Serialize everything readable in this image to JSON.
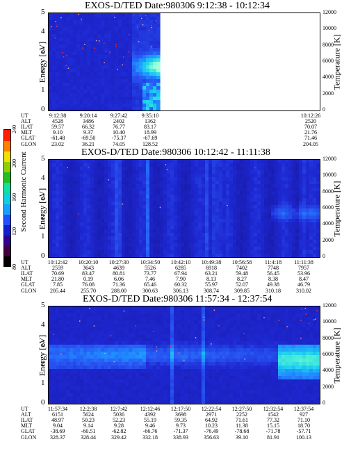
{
  "colorbar": {
    "label": "Second Harmonic Current",
    "ticks": [
      "80",
      "120",
      "160",
      "200",
      "240"
    ],
    "colors": [
      "#000000",
      "#400040",
      "#300090",
      "#1020d0",
      "#2050ff",
      "#1aa0ff",
      "#10d0e0",
      "#10e0a0",
      "#20c020",
      "#90d000",
      "#f0e000",
      "#ff8000",
      "#ff2000"
    ]
  },
  "panels": [
    {
      "title": "EXOS-D/TED   Date:980306  9:12:38 - 10:12:34",
      "ylabel": "Energy [eV]",
      "y2label": "Temperature [K]",
      "yticks": [
        "0",
        "1",
        "2",
        "3",
        "4",
        "5"
      ],
      "y2ticks": [
        "0",
        "2000",
        "4000",
        "6000",
        "8000",
        "10000",
        "12000"
      ],
      "eph_labels": [
        "UT",
        "ALT",
        "ILAT",
        "MLT",
        "GLAT",
        "GLON"
      ],
      "eph_columns": [
        {
          "vals": [
            "9:12:38",
            "4528",
            "59.57",
            "9.10",
            "-61.48",
            "23.02"
          ]
        },
        {
          "vals": [
            "9:20:14",
            "3486",
            "66.32",
            "9.37",
            "-69.50",
            "36.21"
          ]
        },
        {
          "vals": [
            "9:27:42",
            "2402",
            "76.77",
            "10.40",
            "-75.37",
            "74.05"
          ]
        },
        {
          "vals": [
            "9:35:10",
            "1362",
            "83.17",
            "18.99",
            "-67.69",
            "128.52"
          ]
        },
        {
          "vals": [
            "10:12:26",
            "2520",
            "70.07",
            "21.76",
            "71.46",
            "204.05"
          ]
        }
      ]
    },
    {
      "title": "EXOS-D/TED   Date:980306  10:12:42 - 11:11:38",
      "ylabel": "Energy [eV]",
      "y2label": "Temperature [K]",
      "yticks": [
        "0",
        "1",
        "2",
        "3",
        "4",
        "5"
      ],
      "y2ticks": [
        "0",
        "2000",
        "4000",
        "6000",
        "8000",
        "10000",
        "12000"
      ],
      "eph_labels": [
        "UT",
        "ALT",
        "ILAT",
        "MLT",
        "GLAT",
        "GLON"
      ],
      "eph_columns": [
        {
          "vals": [
            "10:12:42",
            "2559",
            "70.69",
            "21.80",
            "7.85",
            "205.44"
          ]
        },
        {
          "vals": [
            "10:20:10",
            "3643",
            "83.47",
            "0.19",
            "76.08",
            "255.70"
          ]
        },
        {
          "vals": [
            "10:27:30",
            "4639",
            "80.81",
            "6.06",
            "71.36",
            "288.00"
          ]
        },
        {
          "vals": [
            "10:34:50",
            "5526",
            "73.77",
            "7.46",
            "65.46",
            "300.63"
          ]
        },
        {
          "vals": [
            "10:42:10",
            "6285",
            "67.94",
            "7.90",
            "60.32",
            "306.13"
          ]
        },
        {
          "vals": [
            "10:49:38",
            "6918",
            "63.21",
            "8.13",
            "55.97",
            "308.74"
          ]
        },
        {
          "vals": [
            "10:56:58",
            "7402",
            "59.48",
            "8.27",
            "52.07",
            "309.85"
          ]
        },
        {
          "vals": [
            "11:4:18",
            "7748",
            "56.45",
            "8.38",
            "49.38",
            "310.18"
          ]
        },
        {
          "vals": [
            "11:11:38",
            "7957",
            "53.96",
            "8.47",
            "46.79",
            "310.02"
          ]
        }
      ]
    },
    {
      "title": "EXOS-D/TED   Date:980306  11:57:34 - 12:37:54",
      "ylabel": "Energy [eV]",
      "y2label": "Temperature [K]",
      "yticks": [
        "0",
        "1",
        "2",
        "3",
        "4",
        "5"
      ],
      "y2ticks": [
        "0",
        "2000",
        "4000",
        "6000",
        "8000",
        "10000",
        "12000"
      ],
      "eph_labels": [
        "UT",
        "ALT",
        "ILAT",
        "MLT",
        "GLAT",
        "GLON"
      ],
      "eph_columns": [
        {
          "vals": [
            "11:57:34",
            "6151",
            "48.97",
            "9.04",
            "-38.69",
            "328.37"
          ]
        },
        {
          "vals": [
            "12:2:38",
            "5624",
            "50.23",
            "9.14",
            "-60.51",
            "328.44"
          ]
        },
        {
          "vals": [
            "12:7:42",
            "5036",
            "52.23",
            "9.28",
            "-62.82",
            "329.42"
          ]
        },
        {
          "vals": [
            "12:12:46",
            "4392",
            "55.19",
            "9.46",
            "-66.76",
            "332.18"
          ]
        },
        {
          "vals": [
            "12:17:50",
            "3698",
            "59.35",
            "9.73",
            "-71.37",
            "338.93"
          ]
        },
        {
          "vals": [
            "12:22:54",
            "2971",
            "64.92",
            "10.23",
            "-76.49",
            "356.63"
          ]
        },
        {
          "vals": [
            "12:27:50",
            "2252",
            "71.61",
            "11.38",
            "-78.68",
            "39.10"
          ]
        },
        {
          "vals": [
            "12:32:54",
            "1542",
            "77.32",
            "15.15",
            "-71.78",
            "81.91"
          ]
        },
        {
          "vals": [
            "12:37:54",
            "927",
            "71.10",
            "18.70",
            "-57.71",
            "100.13"
          ]
        }
      ]
    }
  ],
  "chart_data": [
    {
      "type": "heatmap",
      "title": "EXOS-D/TED   Date:980306  9:12:38 - 10:12:34",
      "xlabel": "UT",
      "ylabel": "Energy [eV]",
      "y2label": "Temperature [K]",
      "ylim": [
        0,
        5
      ],
      "y2lim": [
        0,
        12000
      ],
      "x_ticks": [
        "9:12:38",
        "9:20:14",
        "9:27:42",
        "9:35:10",
        "10:12:26"
      ],
      "colorbar_label": "Second Harmonic Current",
      "colorbar_ticks": [
        80,
        120,
        160,
        200,
        240
      ],
      "data_coverage": "data only from 9:12:38 to about 9:39; no data afterwards"
    },
    {
      "type": "heatmap",
      "title": "EXOS-D/TED   Date:980306  10:12:42 - 11:11:38",
      "xlabel": "UT",
      "ylabel": "Energy [eV]",
      "y2label": "Temperature [K]",
      "ylim": [
        0,
        5
      ],
      "y2lim": [
        0,
        12000
      ],
      "x_ticks": [
        "10:12:42",
        "10:20:10",
        "10:27:30",
        "10:34:50",
        "10:42:10",
        "10:49:38",
        "10:56:58",
        "11:4:18",
        "11:11:38"
      ],
      "colorbar_label": "Second Harmonic Current",
      "colorbar_ticks": [
        80,
        120,
        160,
        200,
        240
      ]
    },
    {
      "type": "heatmap",
      "title": "EXOS-D/TED   Date:980306  11:57:34 - 12:37:54",
      "xlabel": "UT",
      "ylabel": "Energy [eV]",
      "y2label": "Temperature [K]",
      "ylim": [
        0,
        5
      ],
      "y2lim": [
        0,
        12000
      ],
      "x_ticks": [
        "11:57:34",
        "12:2:38",
        "12:7:42",
        "12:12:46",
        "12:17:50",
        "12:22:54",
        "12:27:50",
        "12:32:54",
        "12:37:54"
      ],
      "colorbar_label": "Second Harmonic Current",
      "colorbar_ticks": [
        80,
        120,
        160,
        200,
        240
      ]
    }
  ]
}
